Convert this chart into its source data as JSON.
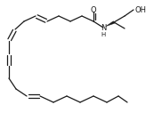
{
  "bg_color": "#ffffff",
  "line_color": "#1a1a1a",
  "lw": 0.9,
  "figsize": [
    1.73,
    1.36
  ],
  "dpi": 100
}
